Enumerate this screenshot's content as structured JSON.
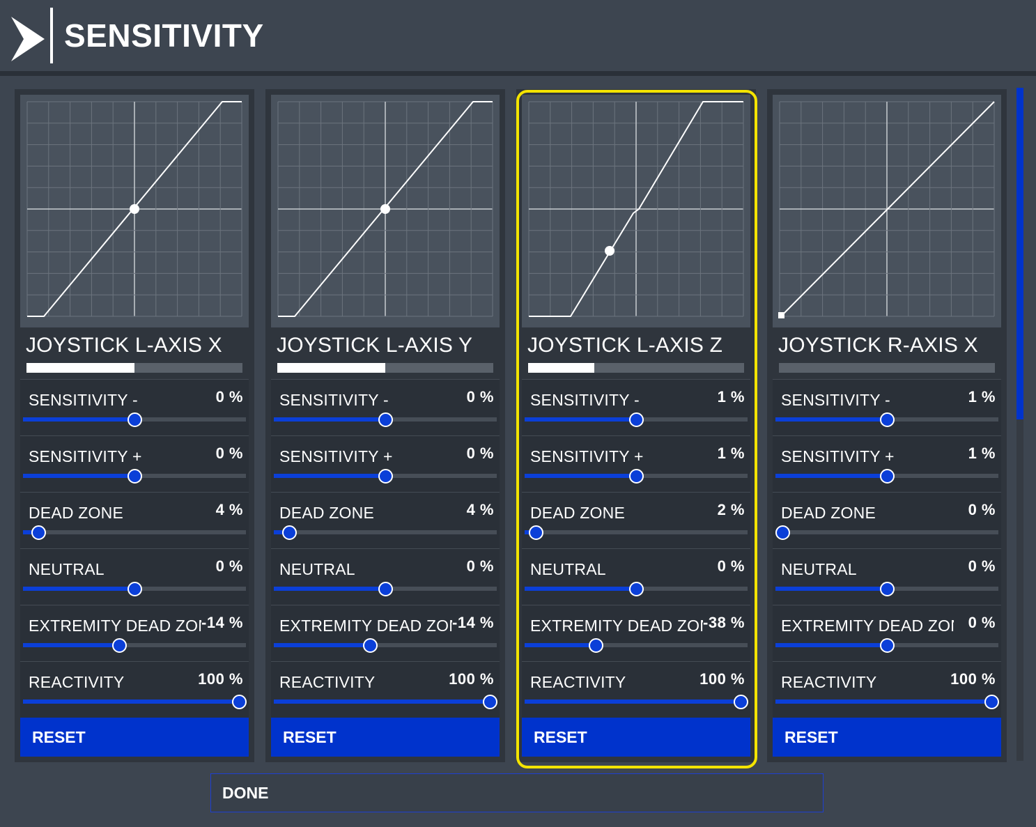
{
  "header": {
    "title": "SENSITIVITY",
    "icon": "chevron-right-icon"
  },
  "done_label": "DONE",
  "colors": {
    "accent": "#0033cc",
    "focus": "#f4e400",
    "panel": "#2f353d",
    "background": "#3d4550"
  },
  "cards": [
    {
      "name": "JOYSTICK L-AXIS X",
      "input_level": 0.5,
      "reset_label": "RESET",
      "curve_marker": {
        "input": 0.5,
        "output": 0.5
      },
      "rows": [
        {
          "label": "SENSITIVITY -",
          "value": "0 %",
          "fraction": 0.5
        },
        {
          "label": "SENSITIVITY +",
          "value": "0 %",
          "fraction": 0.5
        },
        {
          "label": "DEAD ZONE",
          "value": "4 %",
          "fraction": 0.07
        },
        {
          "label": "NEUTRAL",
          "value": "0 %",
          "fraction": 0.5
        },
        {
          "label": "EXTREMITY DEAD ZONE",
          "value": "-14 %",
          "fraction": 0.43
        },
        {
          "label": "REACTIVITY",
          "value": "100 %",
          "fraction": 0.97
        }
      ]
    },
    {
      "name": "JOYSTICK L-AXIS Y",
      "input_level": 0.5,
      "reset_label": "RESET",
      "curve_marker": {
        "input": 0.5,
        "output": 0.5
      },
      "rows": [
        {
          "label": "SENSITIVITY -",
          "value": "0 %",
          "fraction": 0.5
        },
        {
          "label": "SENSITIVITY +",
          "value": "0 %",
          "fraction": 0.5
        },
        {
          "label": "DEAD ZONE",
          "value": "4 %",
          "fraction": 0.07
        },
        {
          "label": "NEUTRAL",
          "value": "0 %",
          "fraction": 0.5
        },
        {
          "label": "EXTREMITY DEAD ZONE",
          "value": "-14 %",
          "fraction": 0.43
        },
        {
          "label": "REACTIVITY",
          "value": "100 %",
          "fraction": 0.97
        }
      ]
    },
    {
      "name": "JOYSTICK L-AXIS Z",
      "input_level": 0.31,
      "reset_label": "RESET",
      "focused": true,
      "curve_marker": {
        "input": 0.37,
        "output": 0.31
      },
      "rows": [
        {
          "label": "SENSITIVITY -",
          "value": "1 %",
          "fraction": 0.5
        },
        {
          "label": "SENSITIVITY +",
          "value": "1 %",
          "fraction": 0.5
        },
        {
          "label": "DEAD ZONE",
          "value": "2 %",
          "fraction": 0.05
        },
        {
          "label": "NEUTRAL",
          "value": "0 %",
          "fraction": 0.5
        },
        {
          "label": "EXTREMITY DEAD ZONE",
          "value": "-38 %",
          "fraction": 0.32
        },
        {
          "label": "REACTIVITY",
          "value": "100 %",
          "fraction": 0.97
        }
      ]
    },
    {
      "name": "JOYSTICK R-AXIS X",
      "input_level": 0,
      "reset_label": "RESET",
      "curve_marker": {
        "input": 0.01,
        "output": 0.01
      },
      "rows": [
        {
          "label": "SENSITIVITY -",
          "value": "1 %",
          "fraction": 0.5
        },
        {
          "label": "SENSITIVITY +",
          "value": "1 %",
          "fraction": 0.5
        },
        {
          "label": "DEAD ZONE",
          "value": "0 %",
          "fraction": 0.03
        },
        {
          "label": "NEUTRAL",
          "value": "0 %",
          "fraction": 0.5
        },
        {
          "label": "EXTREMITY DEAD ZONE",
          "value": "0 %",
          "fraction": 0.5
        },
        {
          "label": "REACTIVITY",
          "value": "100 %",
          "fraction": 0.97
        }
      ]
    }
  ]
}
